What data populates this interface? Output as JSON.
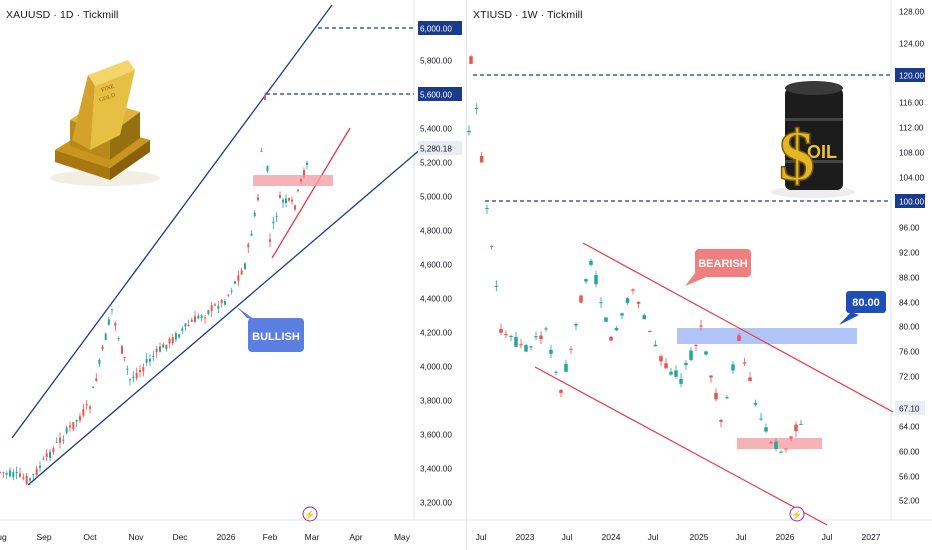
{
  "left_chart": {
    "title": "XAUUSD · 1D · Tickmill",
    "price_labels": [
      "6,000.00",
      "5,800.00",
      "5,600.00",
      "5,400.00",
      "5,280.18",
      "5,200.00",
      "5,000.00",
      "4,800.00",
      "4,600.00",
      "4,400.00",
      "4,200.00",
      "4,000.00",
      "3,800.00",
      "3,600.00",
      "3,400.00",
      "3,200.00"
    ],
    "highlighted_levels": [
      "6,000.00",
      "5,600.00"
    ],
    "current_price": "5,280.18",
    "time_labels": [
      "ug",
      "Sep",
      "Oct",
      "Nov",
      "Dec",
      "2026",
      "Feb",
      "Mar",
      "Apr",
      "May"
    ],
    "annotation": "BULLISH",
    "annotation_color": "#5b7fe0",
    "image_icon": "gold-bars-icon"
  },
  "right_chart": {
    "title": "XTIUSD · 1W · Tickmill",
    "price_labels": [
      "128.00",
      "124.00",
      "120.00",
      "116.00",
      "112.00",
      "108.00",
      "104.00",
      "100.00",
      "96.00",
      "92.00",
      "88.00",
      "84.00",
      "80.00",
      "76.00",
      "72.00",
      "67.10",
      "64.00",
      "60.00",
      "56.00",
      "52.00"
    ],
    "highlighted_levels": [
      "120.00",
      "100.00"
    ],
    "current_price": "67.10",
    "time_labels": [
      "Jul",
      "2023",
      "Jul",
      "2024",
      "Jul",
      "2025",
      "Jul",
      "2026",
      "Jul",
      "2027"
    ],
    "annotation": "BEARISH",
    "annotation_color": "#f08080",
    "target_label": "80.00",
    "target_color": "#1f4fb4",
    "image_icon": "oil-barrel-icon"
  },
  "colors": {
    "up": "#26a69a",
    "down": "#ef5350",
    "trend_blue": "#1a3a8c",
    "trend_red": "#e53945"
  }
}
